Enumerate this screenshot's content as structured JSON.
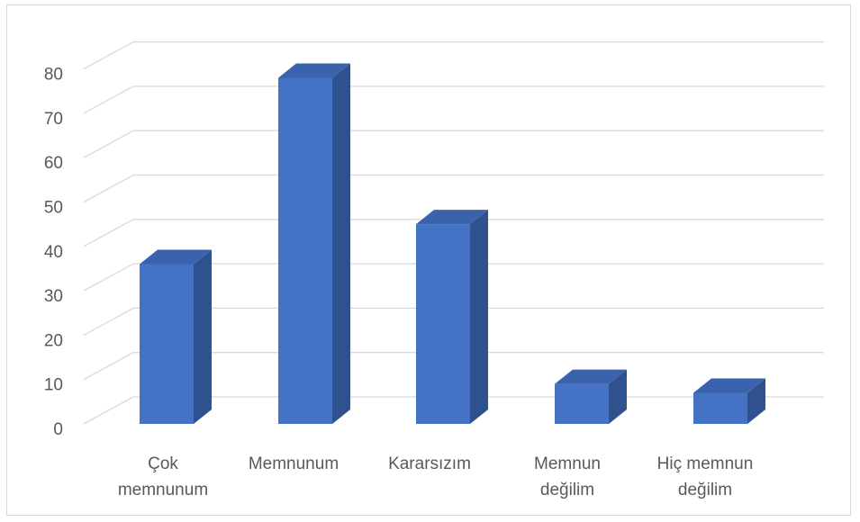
{
  "chart_data": {
    "type": "bar",
    "style": "3d-column",
    "categories": [
      [
        "Çok",
        "memnunum"
      ],
      [
        "Memnunum"
      ],
      [
        "Kararsızım"
      ],
      [
        "Memnun",
        "değilim"
      ],
      [
        "Hiç memnun",
        "değilim"
      ]
    ],
    "values": [
      36,
      78,
      45,
      9,
      7
    ],
    "ylim": [
      0,
      80
    ],
    "yticks": [
      0,
      10,
      20,
      30,
      40,
      50,
      60,
      70,
      80
    ],
    "grid": true,
    "legend": "none",
    "colors": {
      "bar_front": "#4472c4",
      "bar_side": "#2f528f",
      "bar_top": "#3a62ad",
      "gridline": "#d9d9d9",
      "axis_text": "#595959"
    }
  }
}
